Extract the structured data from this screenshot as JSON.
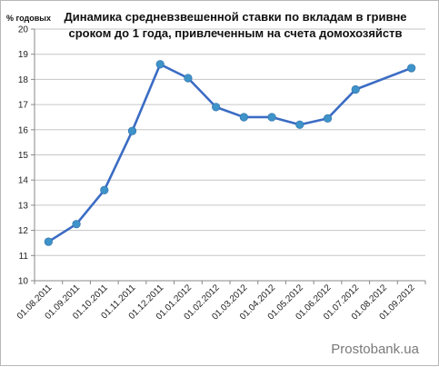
{
  "chart_data": {
    "type": "line",
    "title": "Динамика средневзвешенной ставки по вкладам в гривне сроком до 1 года, привлеченным на счета домохозяйств",
    "title_lines": [
      "Динамика средневзвешенной ставки по вкладам в гривне",
      "сроком до 1 года, привлеченным на счета домохозяйств"
    ],
    "ylabel": "% годовых",
    "xlabel": "",
    "categories": [
      "01.08.2011",
      "01.09.2011",
      "01.10.2011",
      "01.11.2011",
      "01.12.2011",
      "01.01.2012",
      "01.02.2012",
      "01.03.2012",
      "01.04.2012",
      "01.05.2012",
      "01.06.2012",
      "01.07.2012",
      "01.08.2012",
      "01.09.2012"
    ],
    "series": [
      {
        "values": [
          11.55,
          12.25,
          13.6,
          15.95,
          18.6,
          18.05,
          16.9,
          16.5,
          16.5,
          16.2,
          16.45,
          17.6,
          null,
          18.45
        ],
        "color": "#3b6cc4",
        "marker_color": "#3e93c9"
      }
    ],
    "ylim": [
      10,
      20
    ],
    "yticks": [
      "10",
      "11",
      "12",
      "13",
      "14",
      "15",
      "16",
      "17",
      "18",
      "19",
      "20"
    ],
    "grid": true,
    "grid_color": "#c6c6c6",
    "legend": "none"
  },
  "watermark": "Prostobank.ua"
}
